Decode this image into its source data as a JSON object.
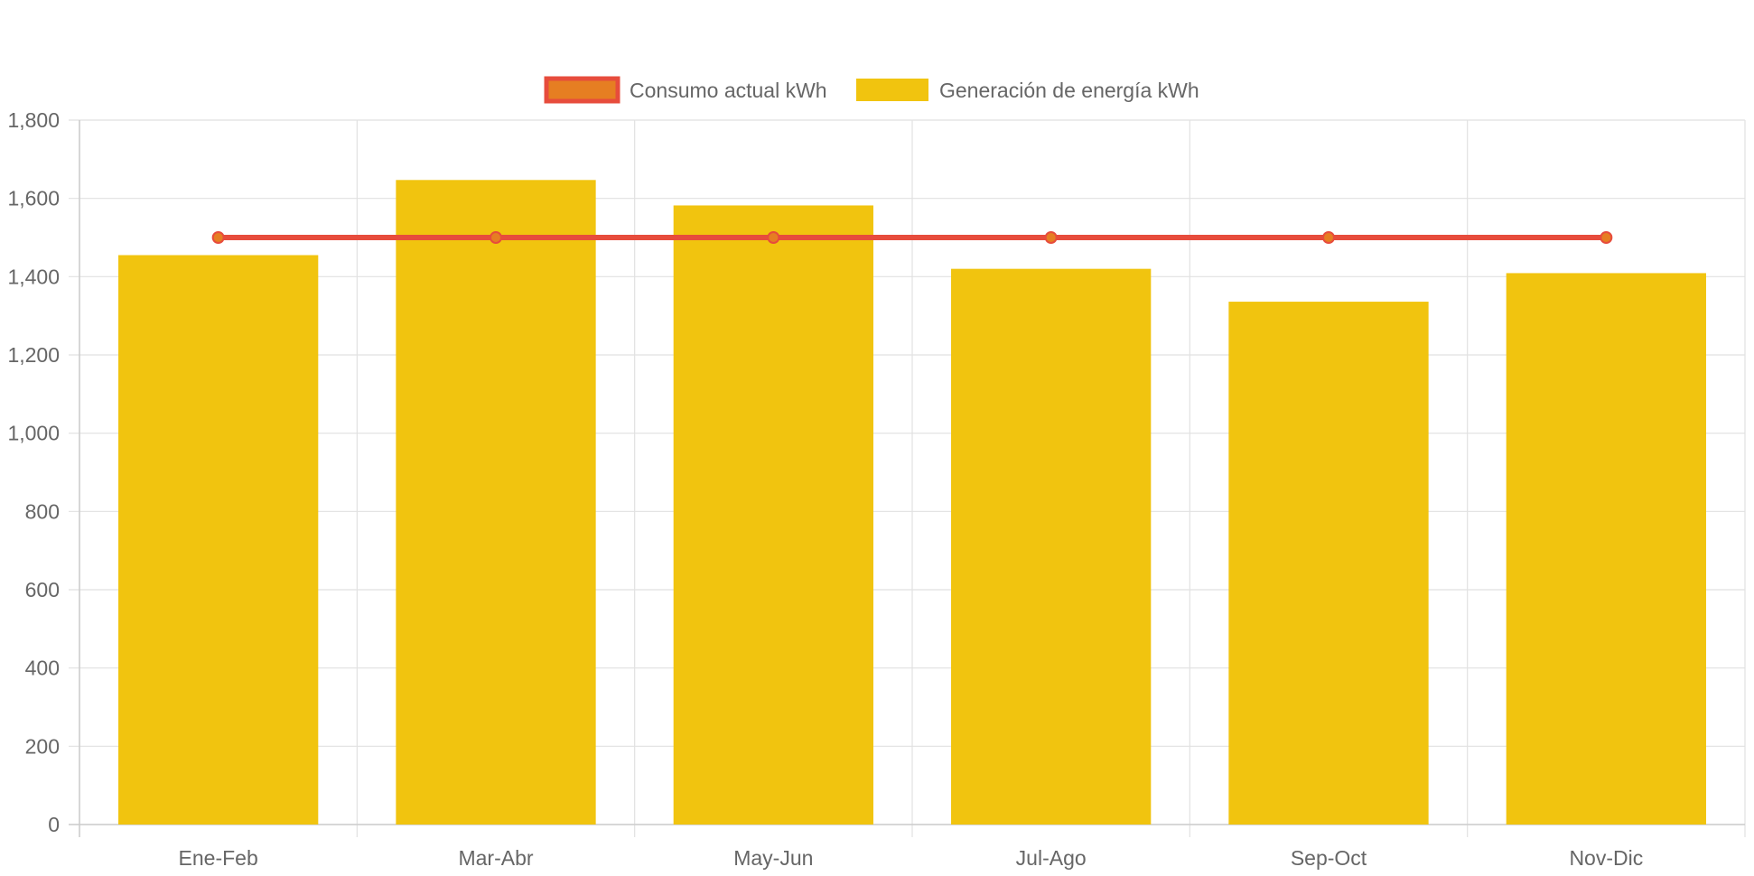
{
  "chart_data": {
    "type": "bar",
    "title": "",
    "xlabel": "",
    "ylabel": "",
    "categories": [
      "Ene-Feb",
      "Mar-Abr",
      "May-Jun",
      "Jul-Ago",
      "Sep-Oct",
      "Nov-Dic"
    ],
    "ylim": [
      0,
      1800
    ],
    "yticks": [
      0,
      200,
      400,
      600,
      800,
      1000,
      1200,
      1400,
      1600,
      1800
    ],
    "ytick_labels": [
      "0",
      "200",
      "400",
      "600",
      "800",
      "1,000",
      "1,200",
      "1,400",
      "1,600",
      "1,800"
    ],
    "grid": true,
    "legend_position": "top-center",
    "series": [
      {
        "name": "Consumo actual kWh",
        "type": "line",
        "values": [
          1500,
          1500,
          1500,
          1500,
          1500,
          1500
        ],
        "color": "#e74c3c",
        "point_color": "#e67e22"
      },
      {
        "name": "Generación de energía kWh",
        "type": "bar",
        "values": [
          1455,
          1647,
          1582,
          1420,
          1336,
          1409
        ],
        "color": "#f1c40f"
      }
    ]
  }
}
